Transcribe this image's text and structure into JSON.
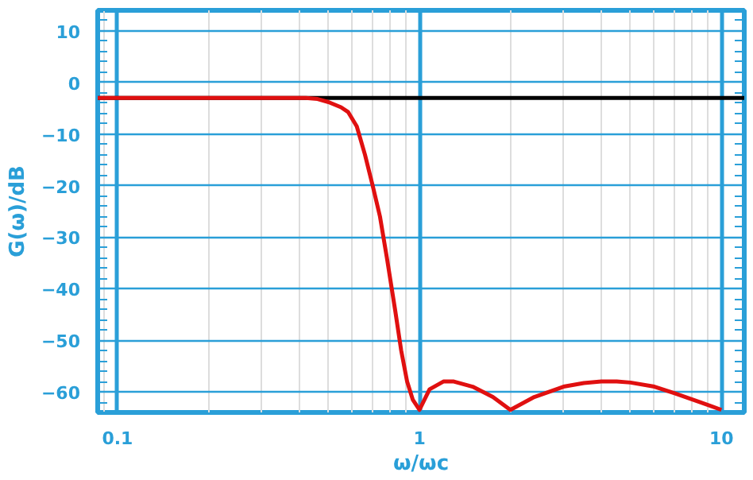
{
  "chart_data": {
    "type": "line",
    "xlabel": "ω/ωc",
    "ylabel": "G(ω)/dB",
    "log": "x",
    "grid": true,
    "marker": "none",
    "line_style": "solid",
    "xlim": [
      0.086,
      11.9
    ],
    "ylim": [
      -64,
      14
    ],
    "xticks": [
      0.1,
      1,
      10
    ],
    "yticks": [
      10,
      0,
      -10,
      -20,
      -30,
      -40,
      -50,
      -60
    ],
    "series": [
      {
        "color": "#e01010",
        "x": [
          0.086,
          0.2,
          0.3,
          0.42,
          0.46,
          0.5,
          0.55,
          0.58,
          0.62,
          0.66,
          0.7,
          0.74,
          0.78,
          0.83,
          0.87,
          0.91,
          0.95,
          1.0,
          1.08,
          1.2,
          1.3,
          1.5,
          1.75,
          2.0,
          2.4,
          3.0,
          3.5,
          4.0,
          4.5,
          5.0,
          6.0,
          7.0,
          8.5,
          10.0
        ],
        "values": [
          -3,
          -3,
          -3,
          -3,
          -3.2,
          -3.8,
          -4.8,
          -5.7,
          -8.5,
          -14,
          -20,
          -26,
          -34,
          -44,
          -52,
          -58,
          -61.5,
          -63.5,
          -59.5,
          -58,
          -58,
          -59,
          -61,
          -63.5,
          -61,
          -59,
          -58.3,
          -58,
          -58,
          -58.2,
          -59,
          -60.3,
          -62,
          -63.5
        ]
      }
    ],
    "ref_lines": [
      {
        "axis": "y",
        "value": -3,
        "label": null,
        "color": "#000000",
        "line_style": "solid"
      }
    ]
  }
}
